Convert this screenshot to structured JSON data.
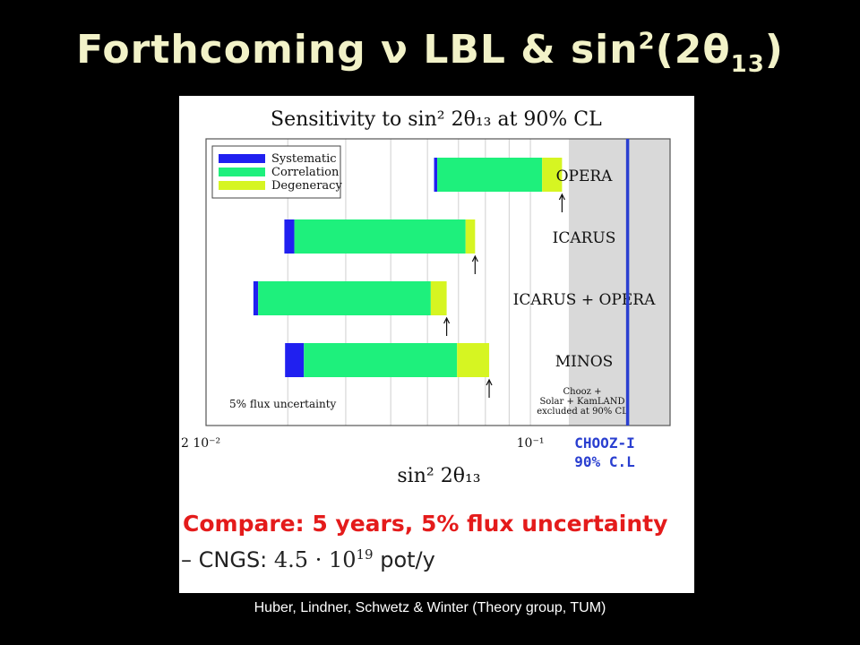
{
  "slide": {
    "title_prefix": "Forthcoming ",
    "title_nu": "ν",
    "title_mid": " LBL & sin",
    "title_sup": "2",
    "title_open": "(2",
    "title_theta": "θ",
    "title_sub": "13",
    "title_close": ")",
    "footer": "Huber, Lindner, Schwetz & Winter (Theory group, TUM)"
  },
  "annotation": {
    "compare": "Compare: 5 years, 5% flux uncertainty",
    "cngs_dash": "– ",
    "cngs_label": "CNGS: ",
    "cngs_value": "4.5 · 10",
    "cngs_exp": "19",
    "cngs_unit": " pot/y"
  },
  "chart_data": {
    "type": "bar",
    "orientation": "horizontal-floating-stacked",
    "title": "Sensitivity to sin² 2θ₁₃ at 90% CL",
    "xlabel": "sin² 2θ₁₃",
    "x_scale": "log",
    "xlim": [
      0.02,
      0.2
    ],
    "x_ticks": [
      {
        "value": 0.02,
        "label": "2 10⁻²"
      },
      {
        "value": 0.1,
        "label": "10⁻¹"
      }
    ],
    "legend": [
      "Systematic",
      "Correlation",
      "Degeneracy"
    ],
    "legend_position": "top-left",
    "colors": {
      "Systematic": "#2020f0",
      "Correlation": "#1ef07c",
      "Degeneracy": "#d6f522",
      "excluded": "#d9d9d9",
      "chooz_line": "#2a3fd0"
    },
    "experiments": [
      {
        "name": "OPERA",
        "systematic": [
          0.062,
          0.063
        ],
        "correlation": [
          0.063,
          0.106
        ],
        "degeneracy": [
          0.106,
          0.117
        ],
        "arrow": 0.117
      },
      {
        "name": "ICARUS",
        "systematic": [
          0.0295,
          0.031
        ],
        "correlation": [
          0.031,
          0.0725
        ],
        "degeneracy": [
          0.0725,
          0.076
        ],
        "arrow": 0.076
      },
      {
        "name": "ICARUS + OPERA",
        "systematic": [
          0.0253,
          0.0259
        ],
        "correlation": [
          0.0259,
          0.061
        ],
        "degeneracy": [
          0.061,
          0.066
        ],
        "arrow": 0.066
      },
      {
        "name": "MINOS",
        "systematic": [
          0.0296,
          0.0325
        ],
        "correlation": [
          0.0325,
          0.0695
        ],
        "degeneracy": [
          0.0695,
          0.0815
        ],
        "arrow": 0.0815
      }
    ],
    "excluded_region": {
      "from": 0.121,
      "label_lines": [
        "Chooz +",
        "Solar + KamLAND",
        "excluded at 90% CL"
      ]
    },
    "flux_note": "5% flux uncertainty",
    "chooz_limit": {
      "value": 0.162,
      "label_lines": [
        "CHOOZ-I",
        "90% C.L"
      ]
    }
  }
}
